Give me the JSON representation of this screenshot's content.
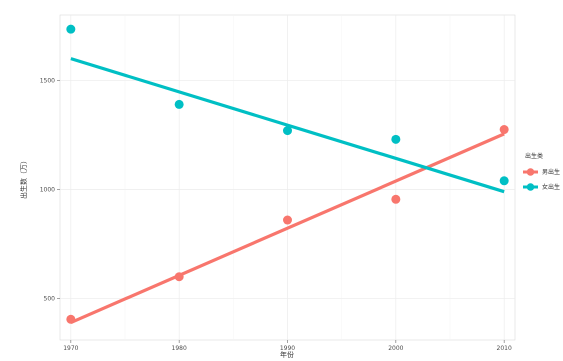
{
  "chart_data": {
    "type": "scatter",
    "title": "",
    "caption": "",
    "xlabel": "年份",
    "ylabel": "出生数（万）",
    "xlim": [
      1969,
      2011
    ],
    "ylim": [
      310,
      1800
    ],
    "x_ticks": [
      1970,
      1980,
      1990,
      2000,
      2010
    ],
    "x_tick_labels": [
      "1970",
      "1980",
      "1990",
      "2000",
      "2010"
    ],
    "y_ticks": [
      500,
      1000,
      1500
    ],
    "y_tick_labels": [
      "500",
      "1000",
      "1500"
    ],
    "grid": true,
    "legend": {
      "title": "出生类",
      "position": "right"
    },
    "series": [
      {
        "name": "男出生",
        "color": "#F8766D",
        "x": [
          1970,
          1980,
          1990,
          2000,
          2010
        ],
        "y": [
          405,
          600,
          860,
          955,
          1275
        ],
        "trend": [
          [
            1970,
            390
          ],
          [
            2010,
            1255
          ]
        ]
      },
      {
        "name": "女出生",
        "color": "#00BFC4",
        "x": [
          1970,
          1980,
          1990,
          2000,
          2010
        ],
        "y": [
          1735,
          1390,
          1270,
          1230,
          1040
        ],
        "trend": [
          [
            1970,
            1600
          ],
          [
            2010,
            990
          ]
        ]
      }
    ]
  }
}
